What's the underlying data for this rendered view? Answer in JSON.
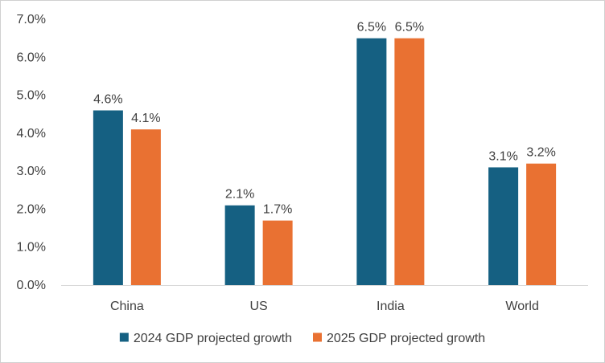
{
  "chart_data": {
    "type": "bar",
    "title": "",
    "xlabel": "",
    "ylabel": "",
    "categories": [
      "China",
      "US",
      "India",
      "World"
    ],
    "series": [
      {
        "name": "2024 GDP projected growth",
        "values": [
          4.6,
          2.1,
          6.5,
          3.1
        ],
        "labels": [
          "4.6%",
          "2.1%",
          "6.5%",
          "3.1%"
        ],
        "color": "#156082"
      },
      {
        "name": "2025 GDP projected growth",
        "values": [
          4.1,
          1.7,
          6.5,
          3.2
        ],
        "labels": [
          "4.1%",
          "1.7%",
          "6.5%",
          "3.2%"
        ],
        "color": "#E97132"
      }
    ],
    "ylim": [
      0,
      7
    ],
    "yticks": [
      0,
      1,
      2,
      3,
      4,
      5,
      6,
      7
    ],
    "ytick_labels": [
      "0.0%",
      "1.0%",
      "2.0%",
      "3.0%",
      "4.0%",
      "5.0%",
      "6.0%",
      "7.0%"
    ],
    "grid": false,
    "legend_position": "bottom",
    "axis_color": "#d9d9d9"
  }
}
